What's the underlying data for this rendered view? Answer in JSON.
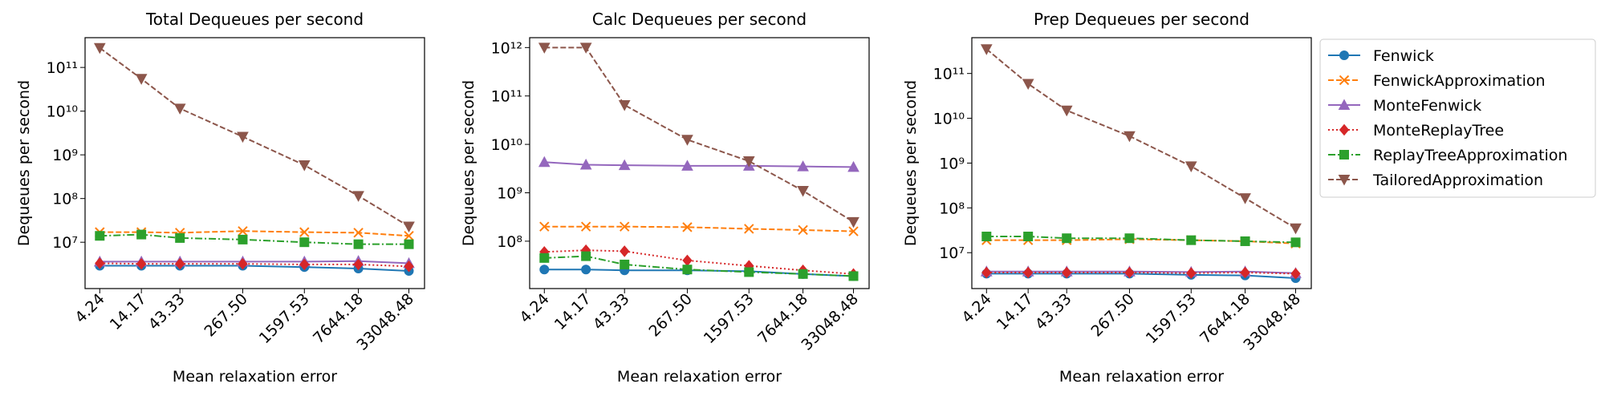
{
  "chart_data": [
    {
      "type": "line",
      "title": "Total Dequeues per second",
      "xlabel": "Mean relaxation error",
      "ylabel": "Dequeues per second",
      "xscale": "log",
      "yscale": "log",
      "x": [
        4.24,
        14.17,
        43.33,
        267.5,
        1597.53,
        7644.18,
        33048.48
      ],
      "xlim": [
        2.77,
        52000
      ],
      "xticks": [
        4.24,
        14.17,
        43.33,
        {
          "value": 267.5,
          "label": "267.50"
        },
        1597.53,
        7644.18,
        33048.48
      ],
      "ylim": [
        870000,
        480000000000
      ],
      "yticks": [
        {
          "value": 10000000,
          "label": "10⁷"
        },
        {
          "value": 100000000,
          "label": "10⁸"
        },
        {
          "value": 1000000000,
          "label": "10⁹"
        },
        {
          "value": 10000000000,
          "label": "10¹⁰"
        },
        {
          "value": 100000000000,
          "label": "10¹¹"
        }
      ],
      "series": [
        {
          "name": "Fenwick",
          "color": "#1f77b4",
          "linestyle": "solid",
          "marker": "o",
          "values": [
            2900000,
            2900000,
            2900000,
            2900000,
            2700000,
            2500000,
            2200000
          ]
        },
        {
          "name": "FenwickApproximation",
          "color": "#ff7f0e",
          "linestyle": "dashed",
          "marker": "x",
          "values": [
            17000000,
            17000000,
            16500000,
            18000000,
            17000000,
            16500000,
            14000000
          ]
        },
        {
          "name": "MonteFenwick",
          "color": "#9467bd",
          "linestyle": "solid",
          "marker": "^",
          "values": [
            3600000,
            3600000,
            3600000,
            3600000,
            3600000,
            3700000,
            3300000
          ]
        },
        {
          "name": "MonteReplayTree",
          "color": "#d62728",
          "linestyle": "dotted",
          "marker": "D",
          "values": [
            3300000,
            3200000,
            3200000,
            3200000,
            3100000,
            3100000,
            2800000
          ]
        },
        {
          "name": "ReplayTreeApproximation",
          "color": "#2ca02c",
          "linestyle": "dashdot",
          "marker": "s",
          "values": [
            14000000,
            15000000,
            12500000,
            11500000,
            10000000,
            9000000,
            9000000
          ]
        },
        {
          "name": "TailoredApproximation",
          "color": "#8c564b",
          "linestyle": "dashed",
          "marker": "v",
          "values": [
            280000000000,
            55000000000,
            11500000000,
            2600000000,
            580000000,
            115000000,
            23000000
          ]
        }
      ]
    },
    {
      "type": "line",
      "title": "Calc Dequeues per second",
      "xlabel": "Mean relaxation error",
      "ylabel": "Dequeues per second",
      "xscale": "log",
      "yscale": "log",
      "x": [
        4.24,
        14.17,
        43.33,
        267.5,
        1597.53,
        7644.18,
        33048.48
      ],
      "xlim": [
        2.77,
        52000
      ],
      "xticks": [
        4.24,
        14.17,
        43.33,
        {
          "value": 267.5,
          "label": "267.50"
        },
        1597.53,
        7644.18,
        33048.48
      ],
      "ylim": [
        10500000,
        1600000000000
      ],
      "yticks": [
        {
          "value": 100000000,
          "label": "10⁸"
        },
        {
          "value": 1000000000,
          "label": "10⁹"
        },
        {
          "value": 10000000000,
          "label": "10¹⁰"
        },
        {
          "value": 100000000000,
          "label": "10¹¹"
        },
        {
          "value": 1000000000000,
          "label": "10¹²"
        }
      ],
      "series": [
        {
          "name": "Fenwick",
          "color": "#1f77b4",
          "linestyle": "solid",
          "marker": "o",
          "values": [
            26000000,
            26000000,
            25000000,
            25000000,
            24000000,
            21000000,
            19000000
          ]
        },
        {
          "name": "FenwickApproximation",
          "color": "#ff7f0e",
          "linestyle": "dashed",
          "marker": "x",
          "values": [
            200000000,
            200000000,
            200000000,
            195000000,
            180000000,
            170000000,
            160000000
          ]
        },
        {
          "name": "MonteFenwick",
          "color": "#9467bd",
          "linestyle": "solid",
          "marker": "^",
          "values": [
            4300000000,
            3800000000,
            3700000000,
            3600000000,
            3600000000,
            3500000000,
            3400000000
          ]
        },
        {
          "name": "MonteReplayTree",
          "color": "#d62728",
          "linestyle": "dotted",
          "marker": "D",
          "values": [
            60000000,
            65000000,
            62000000,
            40000000,
            31000000,
            25000000,
            21000000
          ]
        },
        {
          "name": "ReplayTreeApproximation",
          "color": "#2ca02c",
          "linestyle": "dashdot",
          "marker": "s",
          "values": [
            45000000,
            49000000,
            33000000,
            26000000,
            23000000,
            21000000,
            19000000
          ]
        },
        {
          "name": "TailoredApproximation",
          "color": "#8c564b",
          "linestyle": "dashed",
          "marker": "v",
          "values": [
            1000000000000,
            1000000000000,
            65000000000,
            12500000000,
            4500000000,
            1100000000,
            250000000
          ]
        }
      ]
    },
    {
      "type": "line",
      "title": "Prep Dequeues per second",
      "xlabel": "Mean relaxation error",
      "ylabel": "Dequeues per second",
      "xscale": "log",
      "yscale": "log",
      "legend": "outside-right",
      "x": [
        4.24,
        14.17,
        43.33,
        267.5,
        1597.53,
        7644.18,
        33048.48
      ],
      "xlim": [
        2.77,
        52000
      ],
      "xticks": [
        4.24,
        14.17,
        43.33,
        {
          "value": 267.5,
          "label": "267.50"
        },
        1597.53,
        7644.18,
        33048.48
      ],
      "ylim": [
        1580000,
        630000000000
      ],
      "yticks": [
        {
          "value": 10000000,
          "label": "10⁷"
        },
        {
          "value": 100000000,
          "label": "10⁸"
        },
        {
          "value": 1000000000,
          "label": "10⁹"
        },
        {
          "value": 10000000000,
          "label": "10¹⁰"
        },
        {
          "value": 100000000000,
          "label": "10¹¹"
        }
      ],
      "series": [
        {
          "name": "Fenwick",
          "color": "#1f77b4",
          "linestyle": "solid",
          "marker": "o",
          "values": [
            3400000,
            3400000,
            3400000,
            3400000,
            3200000,
            3100000,
            2700000
          ]
        },
        {
          "name": "FenwickApproximation",
          "color": "#ff7f0e",
          "linestyle": "dashed",
          "marker": "x",
          "values": [
            19000000,
            19000000,
            19000000,
            20000000,
            19000000,
            18000000,
            16000000
          ]
        },
        {
          "name": "MonteFenwick",
          "color": "#9467bd",
          "linestyle": "solid",
          "marker": "^",
          "values": [
            3800000,
            3800000,
            3800000,
            3800000,
            3700000,
            3800000,
            3500000
          ]
        },
        {
          "name": "MonteReplayTree",
          "color": "#d62728",
          "linestyle": "dotted",
          "marker": "D",
          "values": [
            3600000,
            3600000,
            3600000,
            3600000,
            3500000,
            3600000,
            3400000
          ]
        },
        {
          "name": "ReplayTreeApproximation",
          "color": "#2ca02c",
          "linestyle": "dashdot",
          "marker": "s",
          "values": [
            23000000,
            23000000,
            21000000,
            21000000,
            19000000,
            18000000,
            17000000
          ]
        },
        {
          "name": "TailoredApproximation",
          "color": "#8c564b",
          "linestyle": "dashed",
          "marker": "v",
          "values": [
            350000000000,
            59000000000,
            15000000000,
            4000000000,
            850000000,
            165000000,
            35000000
          ]
        }
      ]
    }
  ]
}
